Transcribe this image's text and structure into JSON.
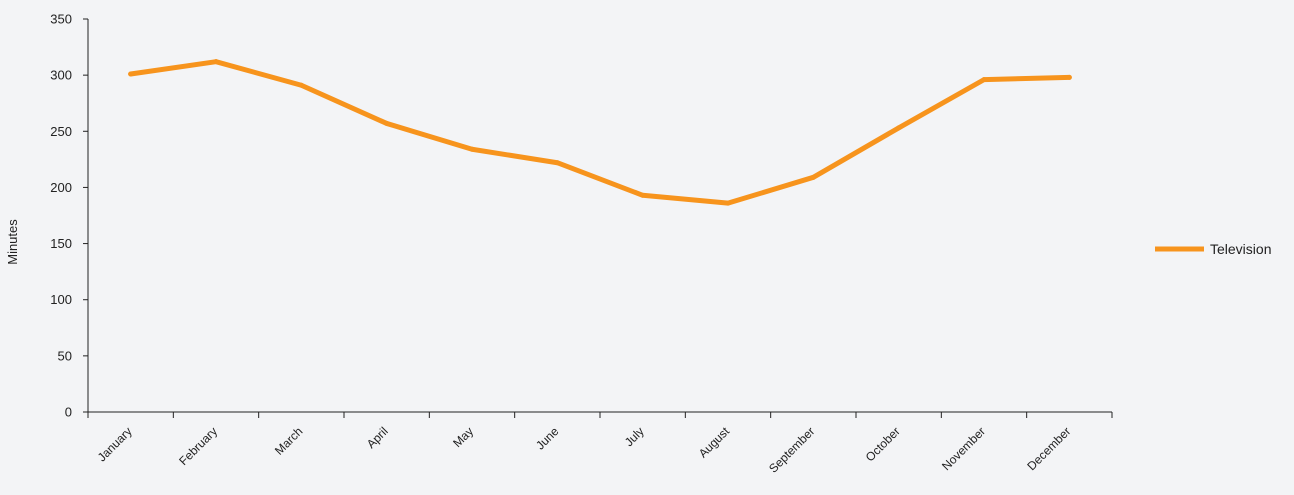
{
  "chart_data": {
    "type": "line",
    "title": "",
    "xlabel": "",
    "ylabel": "Minutes",
    "categories": [
      "January",
      "February",
      "March",
      "April",
      "May",
      "June",
      "July",
      "August",
      "September",
      "October",
      "November",
      "December"
    ],
    "series": [
      {
        "name": "Television",
        "values": [
          301,
          312,
          291,
          257,
          234,
          222,
          193,
          186,
          209,
          253,
          296,
          298
        ],
        "color": "#f7941d"
      }
    ],
    "ylim": [
      0,
      350
    ],
    "yticks": [
      0,
      50,
      100,
      150,
      200,
      250,
      300,
      350
    ],
    "grid": false,
    "legend": "right"
  }
}
